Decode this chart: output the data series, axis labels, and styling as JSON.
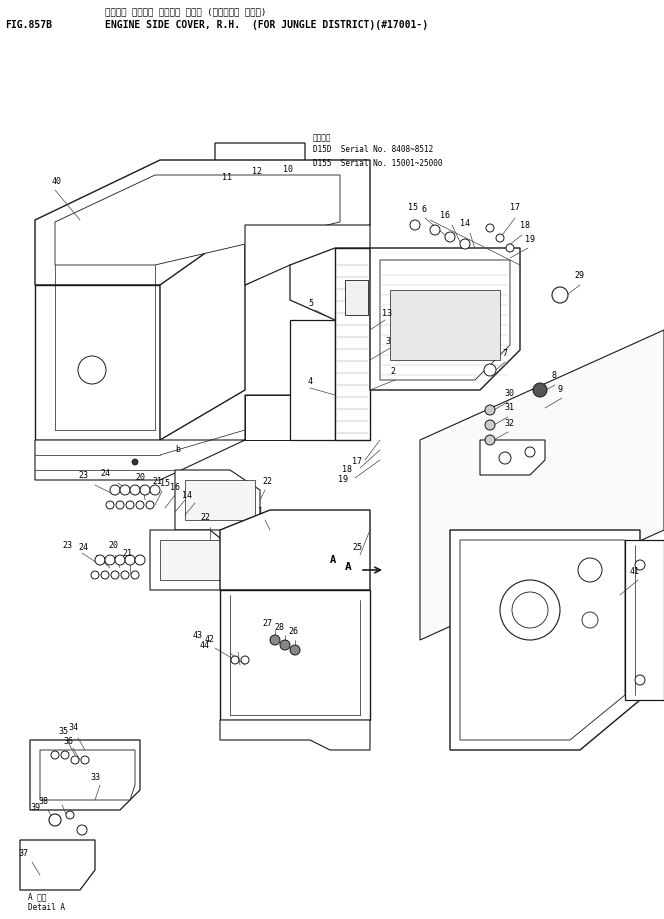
{
  "title_japanese": "エンジン サイト・ カバー、 ミギ・ (ジャングル シヨウ)",
  "title_english": "ENGINE SIDE COVER, R.H.  (FOR JUNGLE DISTRICT)(#17001-)",
  "fig_label": "FIG.857B",
  "background_color": "#ffffff",
  "line_color": "#1a1a1a",
  "text_color": "#000000",
  "fig_width": 6.64,
  "fig_height": 9.19,
  "dpi": 100,
  "serial_title": "適用番号",
  "serial_line1": "D15D  Serial No. 8408~8512",
  "serial_line2": "D155  Serial No. 15001~25000",
  "detail_a": "A 部詳",
  "detail_a_en": "Detail A"
}
